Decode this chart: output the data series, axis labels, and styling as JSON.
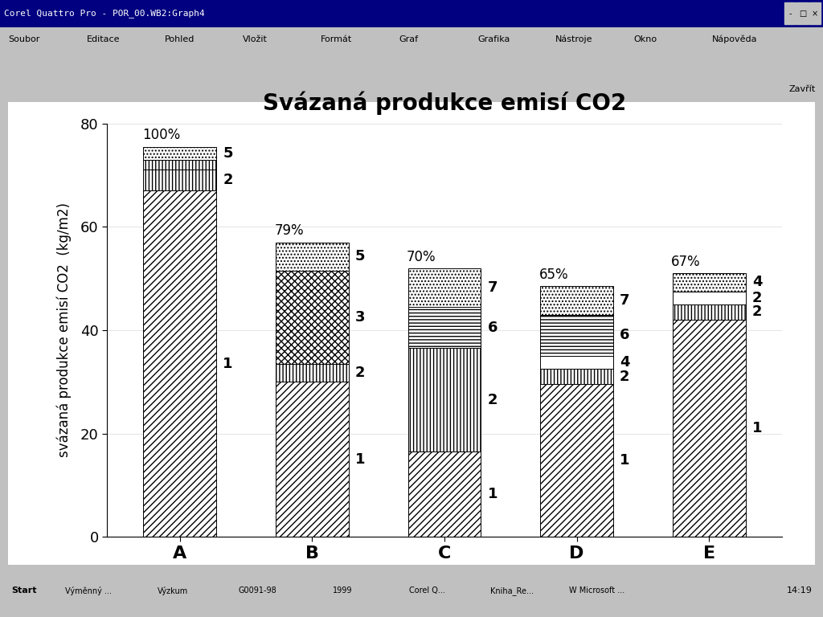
{
  "title": "Svázaná produkce emisí CO2",
  "ylabel": "svázaná produkce emisí CO2  (kg/m2)",
  "categories": [
    "A",
    "B",
    "C",
    "D",
    "E"
  ],
  "percentages": [
    "100%",
    "79%",
    "70%",
    "65%",
    "67%"
  ],
  "ylim": [
    0,
    80
  ],
  "yticks": [
    0,
    20,
    40,
    60,
    80
  ],
  "bar_width": 0.55,
  "segments": {
    "A": [
      {
        "value": 67.0,
        "hatch": "////",
        "label": "1"
      },
      {
        "value": 4.0,
        "hatch": "||||",
        "label": "2"
      },
      {
        "value": 2.0,
        "hatch": "||||",
        "label": ""
      },
      {
        "value": 2.5,
        "hatch": "....",
        "label": "5"
      }
    ],
    "B": [
      {
        "value": 30.0,
        "hatch": "////",
        "label": "1"
      },
      {
        "value": 3.5,
        "hatch": "||||",
        "label": "2"
      },
      {
        "value": 18.0,
        "hatch": "xxxx",
        "label": "3"
      },
      {
        "value": 5.5,
        "hatch": "....",
        "label": "5"
      }
    ],
    "C": [
      {
        "value": 16.5,
        "hatch": "////",
        "label": "1"
      },
      {
        "value": 20.0,
        "hatch": "||||",
        "label": "2"
      },
      {
        "value": 8.0,
        "hatch": "----",
        "label": "6"
      },
      {
        "value": 7.5,
        "hatch": "....",
        "label": "7"
      }
    ],
    "D": [
      {
        "value": 29.5,
        "hatch": "////",
        "label": "1"
      },
      {
        "value": 3.0,
        "hatch": "||||",
        "label": "2"
      },
      {
        "value": 2.5,
        "hatch": "~~~~",
        "label": "4"
      },
      {
        "value": 8.0,
        "hatch": "----",
        "label": "6"
      },
      {
        "value": 5.5,
        "hatch": "....",
        "label": "7"
      }
    ],
    "E": [
      {
        "value": 42.0,
        "hatch": "////",
        "label": "1"
      },
      {
        "value": 3.0,
        "hatch": "||||",
        "label": "2"
      },
      {
        "value": 2.5,
        "hatch": "~~~~",
        "label": "2"
      },
      {
        "value": 3.5,
        "hatch": "....",
        "label": "4"
      }
    ]
  },
  "win_title": "Corel Quattro Pro - POR_00.WB2:Graph4",
  "menu_items": [
    "Soubor",
    "Editace",
    "Pohled",
    "Vložit",
    "Formát",
    "Graf",
    "Grafika",
    "Nástroje",
    "Okno",
    "Nápověda"
  ],
  "taskbar_items": [
    "Start",
    "Výměnný ...",
    "Výzkum",
    "G0091-98",
    "1999",
    "Corel Q...",
    "Kniha_Re...",
    "W Microsoft ..."
  ],
  "win_bg": "#c0c0c0",
  "chart_bg": "#ffffff",
  "title_bar_color": "#000080",
  "title_text_color": "#ffffff",
  "taskbar_time": "14:19",
  "title_fontsize": 20,
  "tick_fontsize": 14,
  "label_fontsize": 12
}
